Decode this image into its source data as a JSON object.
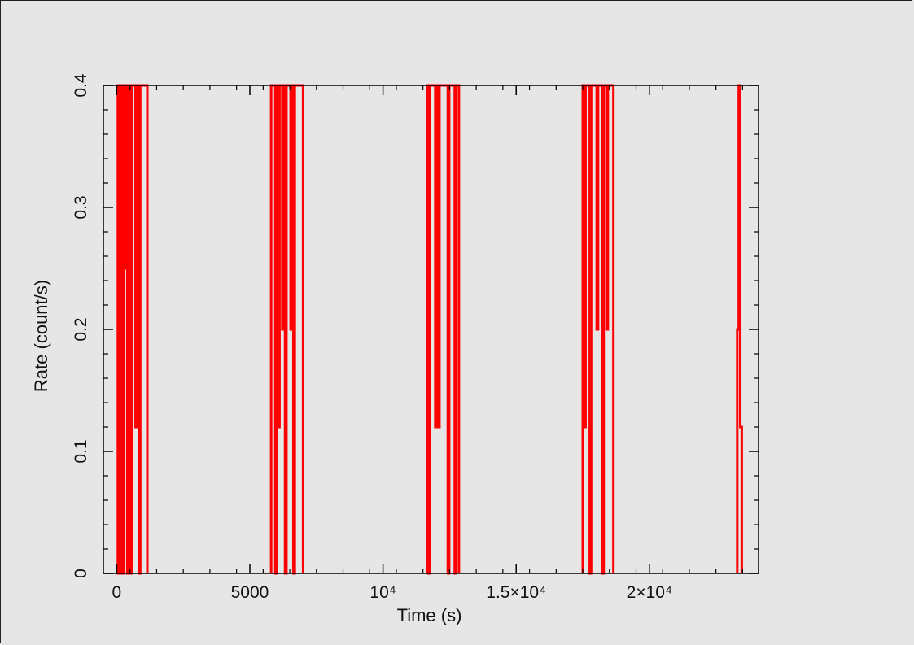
{
  "chart_data": {
    "type": "line",
    "title": "",
    "xlabel": "Time (s)",
    "ylabel": "Rate (count/s)",
    "xlim": [
      -500,
      24100
    ],
    "ylim": [
      0,
      0.4
    ],
    "grid": false,
    "x_ticks": [
      {
        "value": 0,
        "label": "0"
      },
      {
        "value": 5000,
        "label": "5000"
      },
      {
        "value": 10000,
        "label": "10⁴"
      },
      {
        "value": 15000,
        "label": "1.5×10⁴"
      },
      {
        "value": 20000,
        "label": "2×10⁴"
      }
    ],
    "y_ticks": [
      {
        "value": 0,
        "label": "0"
      },
      {
        "value": 0.1,
        "label": "0.1"
      },
      {
        "value": 0.2,
        "label": "0.2"
      },
      {
        "value": 0.3,
        "label": "0.3"
      },
      {
        "value": 0.4,
        "label": "0.4"
      }
    ],
    "series": [
      {
        "color": "#ff0000",
        "segments": [
          {
            "x_start": 0,
            "x_end": 1150,
            "values": [
              0,
              0.4,
              0,
              0.4,
              0.4,
              0,
              0.4,
              0.25,
              0.4,
              0,
              0.4,
              0.4,
              0,
              0.4,
              0.4,
              0.4,
              0.12,
              0.4,
              0.25,
              0,
              0.4,
              0.4,
              0.4,
              0.4,
              0.4,
              0.4
            ]
          },
          {
            "x_start": 5800,
            "x_end": 7000,
            "values": [
              0.4,
              0.4,
              0.4,
              0,
              0.4,
              0.12,
              0.4,
              0.4,
              0.2,
              0.4,
              0,
              0.4,
              0.4,
              0.4,
              0.2,
              0.4,
              0,
              0.4,
              0.4,
              0.4,
              0.4,
              0.4,
              0.4
            ]
          },
          {
            "x_start": 11650,
            "x_end": 12850,
            "values": [
              0.4,
              0,
              0.4,
              0.4,
              0.4,
              0.4,
              0.12,
              0.4,
              0.12,
              0.4,
              0.4,
              0.4,
              0.4,
              0.4,
              0.4,
              0,
              0.4,
              0.4,
              0.4,
              0.4,
              0,
              0.4,
              0.4
            ]
          },
          {
            "x_start": 17500,
            "x_end": 18650,
            "values": [
              0.4,
              0.12,
              0.4,
              0.4,
              0.4,
              0,
              0.4,
              0.4,
              0.4,
              0.4,
              0.2,
              0.4,
              0.4,
              0.4,
              0,
              0.4,
              0.4,
              0.2,
              0.4,
              0.4,
              0.4,
              0.4
            ]
          },
          {
            "x_start": 23300,
            "x_end": 23470,
            "values": [
              0.2,
              0.4,
              0.12
            ]
          }
        ]
      }
    ]
  }
}
